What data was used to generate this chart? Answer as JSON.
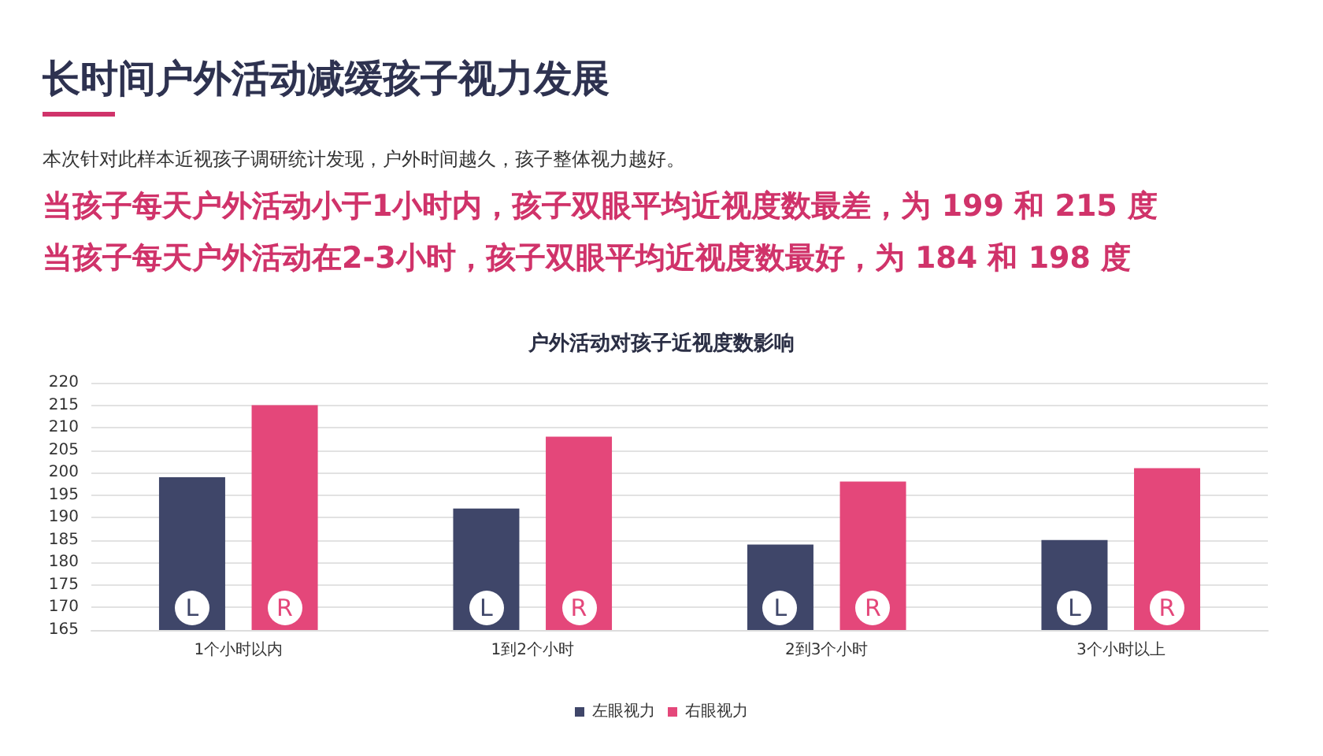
{
  "chart_data": {
    "type": "bar",
    "title": "户外活动对孩子近视度数影响",
    "categories": [
      "1个小时以内",
      "1到2个小时",
      "2到3个小时",
      "3个小时以上"
    ],
    "series": [
      {
        "name": "左眼视力",
        "color": "#3f4669",
        "values": [
          199,
          192,
          184,
          185
        ]
      },
      {
        "name": "右眼视力",
        "color": "#e4477a",
        "values": [
          215,
          208,
          198,
          201
        ]
      }
    ],
    "ylim": [
      165,
      220
    ],
    "yticks": [
      165,
      170,
      175,
      180,
      185,
      190,
      195,
      200,
      205,
      210,
      215,
      220
    ],
    "grid": "y",
    "legend": "bottom",
    "annotations": [
      "长时间户外活动减缓孩子视力发展",
      "本次针对此样本近视孩子调研统计发现，户外时间越久，孩子整体视力越好。",
      "当孩子每天户外活动小于1小时内，孩子双眼平均近视度数最差，为 199 和 215 度",
      "当孩子每天户外活动在2-3小时，孩子双眼平均近视度数最好，为 184 和 198 度",
      "L",
      "R",
      "L",
      "R",
      "L",
      "R",
      "L",
      "R"
    ]
  }
}
